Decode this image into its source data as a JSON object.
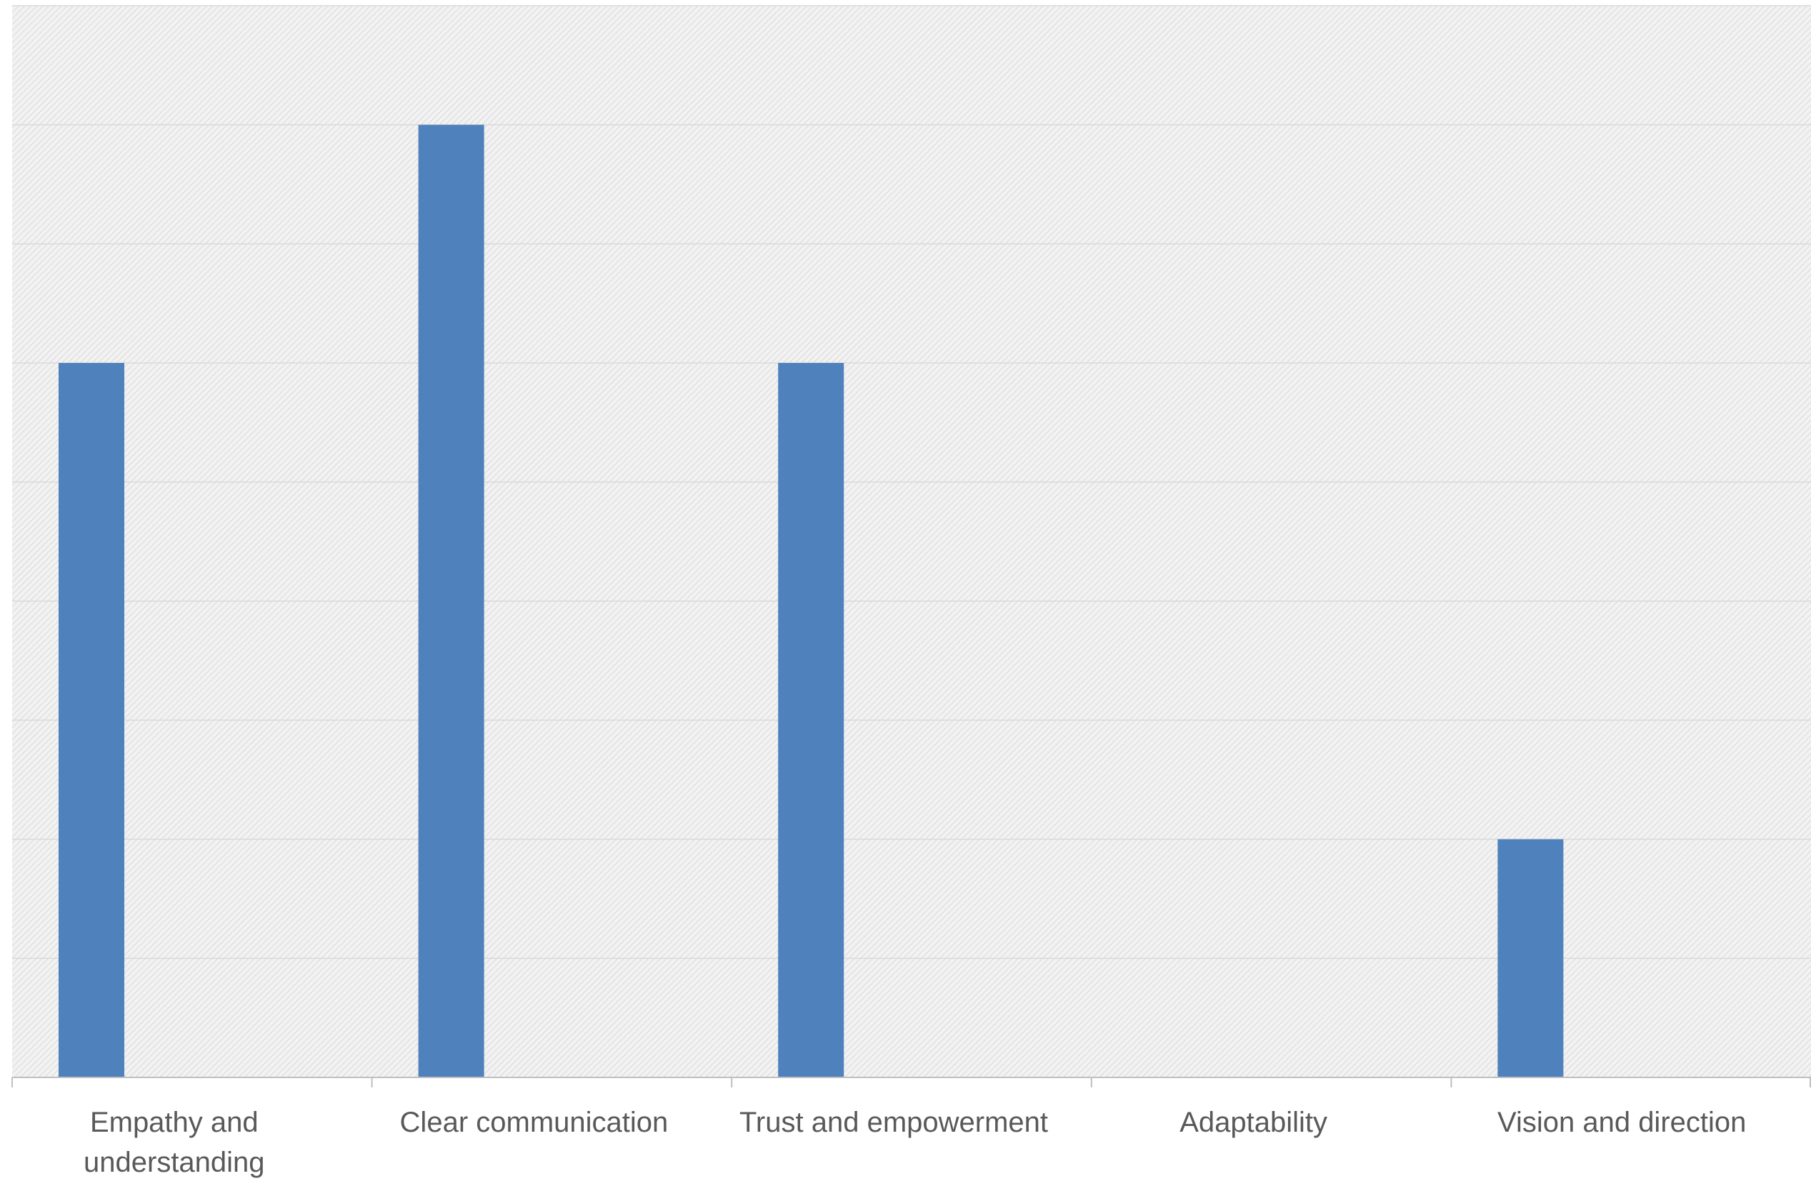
{
  "chart_data": {
    "type": "bar",
    "title": "",
    "xlabel": "",
    "ylabel": "",
    "categories": [
      [
        "Empathy and",
        "understanding"
      ],
      [
        "Clear communication"
      ],
      [
        "Trust and empowerment"
      ],
      [
        "Adaptability"
      ],
      [
        "Vision and direction"
      ]
    ],
    "values": [
      6,
      8,
      6,
      0,
      2
    ],
    "ylim": [
      0,
      9
    ],
    "yticks": [
      0,
      1,
      2,
      3,
      4,
      5,
      6,
      7,
      8,
      9
    ],
    "grid": true,
    "legend": "none",
    "y_axis_labels_visible": false,
    "colors": {
      "bar": "#4F81BD",
      "gridline": "#D9D9D9",
      "axis": "#BFBFBF",
      "tick_text": "#595959",
      "plot_hatch_bg": "#F2F2F2",
      "plot_hatch_line": "#D0D0D0"
    }
  }
}
